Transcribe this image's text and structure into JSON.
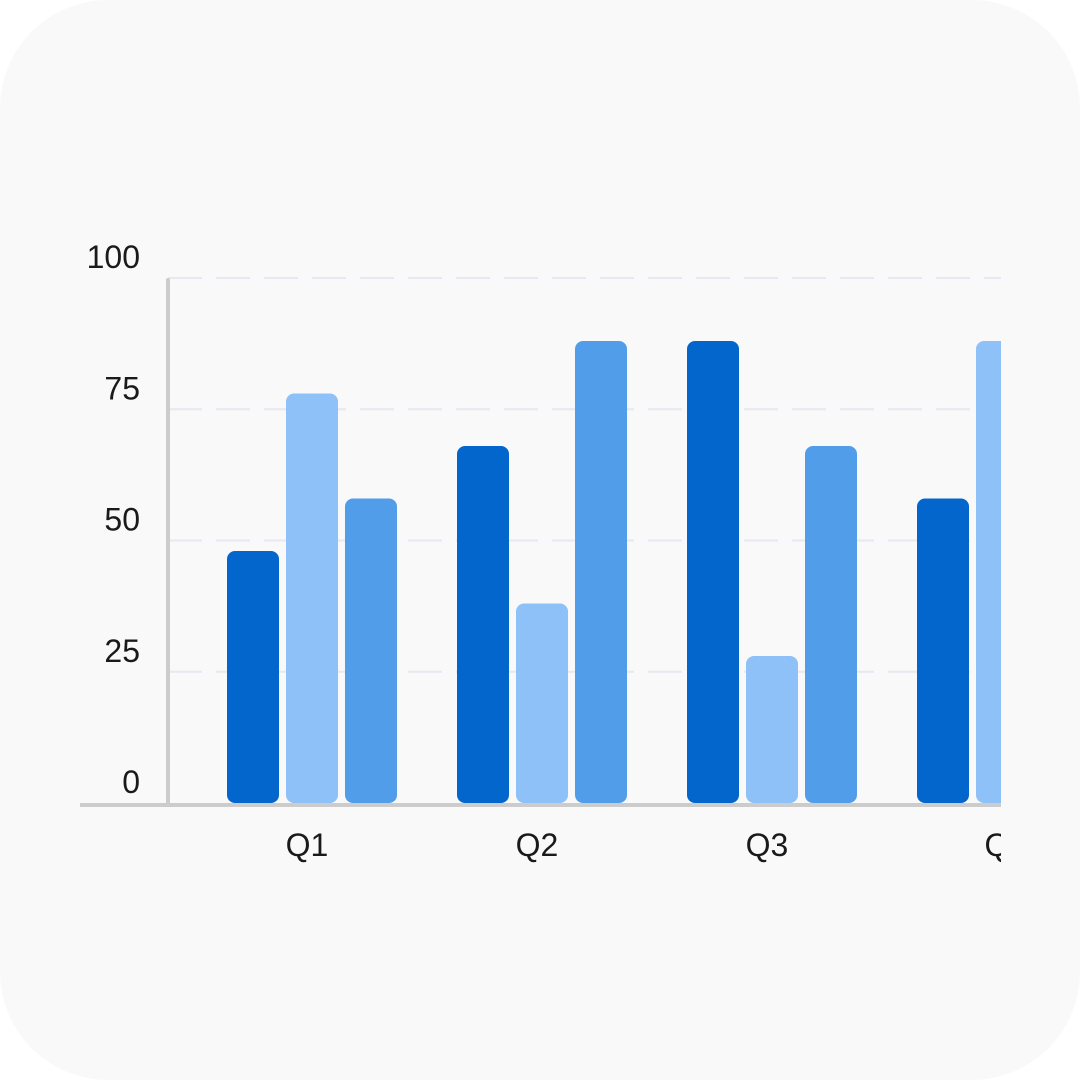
{
  "chart_data": {
    "type": "bar",
    "categories": [
      "Q1",
      "Q2",
      "Q3",
      "Q"
    ],
    "series": [
      {
        "values": [
          48,
          68,
          88,
          58
        ],
        "color": "#0366cc"
      },
      {
        "values": [
          78,
          38,
          28,
          88
        ],
        "color": "#8ec1f8"
      },
      {
        "values": [
          58,
          88,
          68,
          null
        ],
        "color": "#529de9"
      }
    ],
    "y_ticks": [
      "0",
      "25",
      "50",
      "75",
      "100"
    ],
    "ylim": [
      0,
      100
    ],
    "grid": true,
    "title": "",
    "xlabel": "",
    "ylabel": ""
  }
}
